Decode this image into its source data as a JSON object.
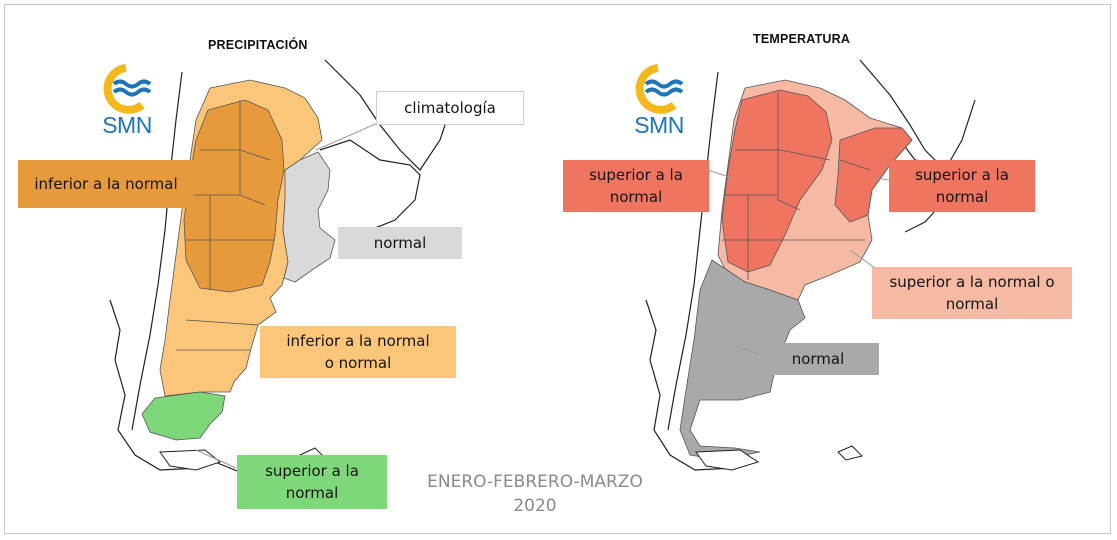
{
  "panels": {
    "left": {
      "title": "PRECIPITACIÓN",
      "logo_text": "SMN",
      "labels": {
        "climatologia": "climatología",
        "inferior": "inferior a la normal",
        "normal": "normal",
        "inferior_o_normal": "inferior a la normal o normal",
        "superior": "superior a la normal"
      }
    },
    "right": {
      "title": "TEMPERATURA",
      "logo_text": "SMN",
      "labels": {
        "superior_left": "superior a la normal",
        "superior_right": "superior a la normal",
        "superior_o_normal": "superior a la normal o normal",
        "normal": "normal"
      }
    }
  },
  "footer": {
    "line1": "ENERO-FEBRERO-MARZO",
    "line2": "2020"
  },
  "colors": {
    "precip_inferior": "#e79a3b",
    "precip_inferior_o_normal": "#fbc67a",
    "precip_normal": "#d9d9d9",
    "precip_superior": "#7ed87a",
    "temp_superior": "#ef7560",
    "temp_superior_o_normal": "#f6b9a3",
    "temp_normal": "#a9a9a9",
    "logo_yellow": "#f4b81a",
    "logo_blue": "#1d74b9"
  }
}
